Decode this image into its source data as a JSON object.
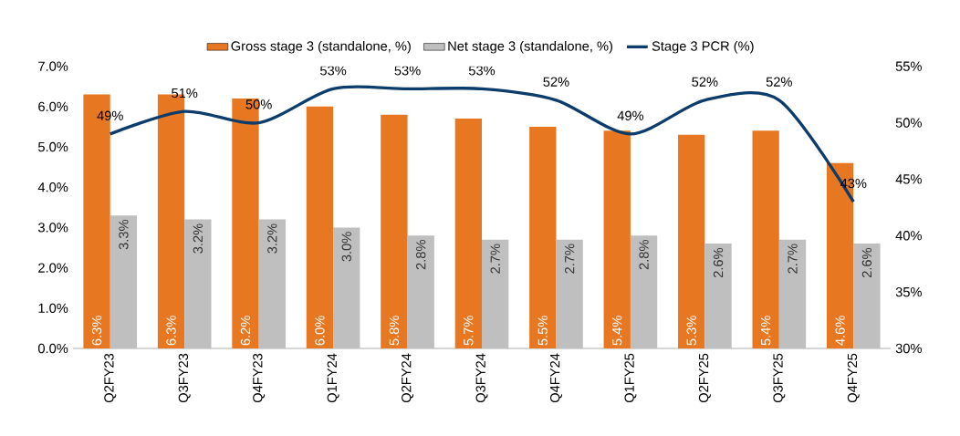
{
  "chart_data": {
    "type": "bar",
    "categories": [
      "Q2FY23",
      "Q3FY23",
      "Q4FY23",
      "Q1FY24",
      "Q2FY24",
      "Q3FY24",
      "Q4FY24",
      "Q1FY25",
      "Q2FY25",
      "Q3FY25",
      "Q4FY25"
    ],
    "series": [
      {
        "name": "Gross stage 3 (standalone, %)",
        "type": "bar",
        "color": "#e87722",
        "values": [
          6.3,
          6.3,
          6.2,
          6.0,
          5.8,
          5.7,
          5.5,
          5.4,
          5.3,
          5.4,
          4.6
        ],
        "value_labels": [
          "6.3%",
          "6.3%",
          "6.2%",
          "6.0%",
          "5.8%",
          "5.7%",
          "5.5%",
          "5.4%",
          "5.3%",
          "5.4%",
          "4.6%"
        ]
      },
      {
        "name": "Net stage 3 (standalone, %)",
        "type": "bar",
        "color": "#bfbfbf",
        "values": [
          3.3,
          3.2,
          3.2,
          3.0,
          2.8,
          2.7,
          2.7,
          2.8,
          2.6,
          2.7,
          2.6
        ],
        "value_labels": [
          "3.3%",
          "3.2%",
          "3.2%",
          "3.0%",
          "2.8%",
          "2.7%",
          "2.7%",
          "2.8%",
          "2.6%",
          "2.7%",
          "2.6%"
        ]
      },
      {
        "name": "Stage 3 PCR (%)",
        "type": "line",
        "axis": "y2",
        "color": "#0b3c6b",
        "values": [
          49,
          51,
          50,
          53,
          53,
          53,
          52,
          49,
          52,
          52,
          43
        ],
        "value_labels": [
          "49%",
          "51%",
          "50%",
          "53%",
          "53%",
          "53%",
          "52%",
          "49%",
          "52%",
          "52%",
          "43%"
        ]
      }
    ],
    "ylim": [
      0,
      7
    ],
    "yticks": [
      {
        "value": 0,
        "label": "0.0%"
      },
      {
        "value": 1,
        "label": "1.0%"
      },
      {
        "value": 2,
        "label": "2.0%"
      },
      {
        "value": 3,
        "label": "3.0%"
      },
      {
        "value": 4,
        "label": "4.0%"
      },
      {
        "value": 5,
        "label": "5.0%"
      },
      {
        "value": 6,
        "label": "6.0%"
      },
      {
        "value": 7,
        "label": "7.0%"
      }
    ],
    "y2lim": [
      30,
      55
    ],
    "y2ticks": [
      {
        "value": 30,
        "label": "30%"
      },
      {
        "value": 35,
        "label": "35%"
      },
      {
        "value": 40,
        "label": "40%"
      },
      {
        "value": 45,
        "label": "45%"
      },
      {
        "value": 50,
        "label": "50%"
      },
      {
        "value": 55,
        "label": "55%"
      }
    ],
    "legend": "top",
    "marker": "none",
    "line_style": "solid"
  }
}
